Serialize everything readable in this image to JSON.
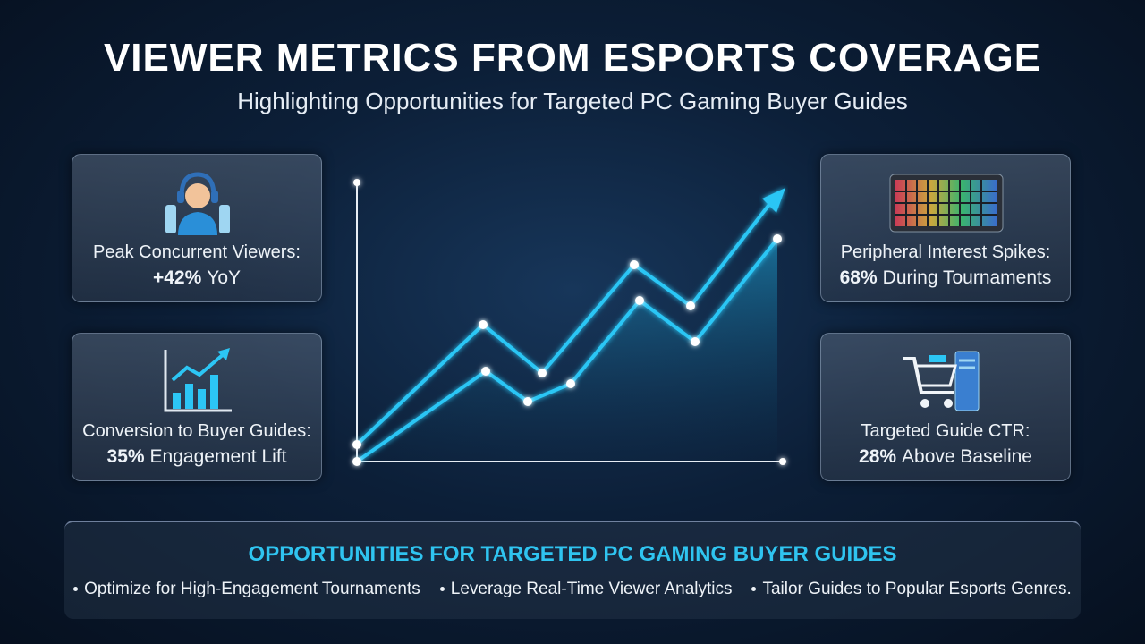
{
  "header": {
    "title": "VIEWER METRICS FROM ESPORTS COVERAGE",
    "subtitle": "Highlighting Opportunities for Targeted PC Gaming Buyer Guides"
  },
  "cards": [
    {
      "label": "Peak Concurrent Viewers:",
      "highlight": "+42%",
      "detail": "YoY"
    },
    {
      "label": "Conversion to Buyer Guides:",
      "highlight": "35%",
      "detail": "Engagement Lift"
    },
    {
      "label": "Peripheral Interest Spikes:",
      "highlight": "68%",
      "detail": "During Tournaments"
    },
    {
      "label": "Targeted Guide CTR:",
      "highlight": "28%",
      "detail": "Above Baseline"
    }
  ],
  "opportunities": {
    "heading": "OPPORTUNITIES FOR TARGETED PC GAMING BUYER GUIDES",
    "items": [
      "Optimize for High-Engagement Tournaments",
      "Leverage Real-Time Viewer Analytics",
      "Tailor Guides to Popular Esports Genres."
    ]
  }
}
